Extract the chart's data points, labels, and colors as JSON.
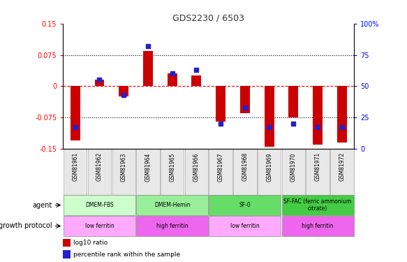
{
  "title": "GDS2230 / 6503",
  "samples": [
    "GSM81961",
    "GSM81962",
    "GSM81963",
    "GSM81964",
    "GSM81965",
    "GSM81966",
    "GSM81967",
    "GSM81968",
    "GSM81969",
    "GSM81970",
    "GSM81971",
    "GSM81972"
  ],
  "log10_ratio": [
    -0.13,
    0.015,
    -0.025,
    0.085,
    0.03,
    0.025,
    -0.085,
    -0.065,
    -0.145,
    -0.075,
    -0.14,
    -0.135
  ],
  "percentile_rank": [
    17,
    55,
    43,
    82,
    60,
    63,
    20,
    33,
    17,
    20,
    17,
    17
  ],
  "ylim": [
    -0.15,
    0.15
  ],
  "yticks": [
    -0.15,
    -0.075,
    0,
    0.075,
    0.15
  ],
  "ytick_labels_left": [
    "-0.15",
    "-0.075",
    "0",
    "0.075",
    "0.15"
  ],
  "ytick_labels_right": [
    "0",
    "25",
    "50",
    "75",
    "100%"
  ],
  "hlines_dotted": [
    0.075,
    -0.075
  ],
  "hline_zero": 0,
  "bar_color": "#cc0000",
  "dot_color": "#2222cc",
  "agent_groups": [
    {
      "label": "DMEM-FBS",
      "start": 0,
      "end": 3,
      "color": "#ccffcc"
    },
    {
      "label": "DMEM-Hemin",
      "start": 3,
      "end": 6,
      "color": "#99ee99"
    },
    {
      "label": "SF-0",
      "start": 6,
      "end": 9,
      "color": "#66dd66"
    },
    {
      "label": "SF-FAC (ferric ammonium\ncitrate)",
      "start": 9,
      "end": 12,
      "color": "#44cc44"
    }
  ],
  "protocol_groups": [
    {
      "label": "low ferritin",
      "start": 0,
      "end": 3,
      "color": "#ffaaff"
    },
    {
      "label": "high ferritin",
      "start": 3,
      "end": 6,
      "color": "#ee66ee"
    },
    {
      "label": "low ferritin",
      "start": 6,
      "end": 9,
      "color": "#ffaaff"
    },
    {
      "label": "high ferritin",
      "start": 9,
      "end": 12,
      "color": "#ee66ee"
    }
  ],
  "legend_red": "log10 ratio",
  "legend_blue": "percentile rank within the sample",
  "label_agent": "agent",
  "label_protocol": "growth protocol"
}
